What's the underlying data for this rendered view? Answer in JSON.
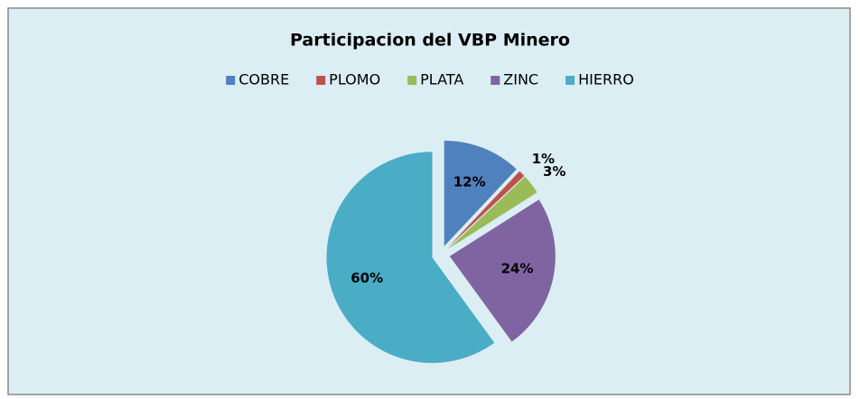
{
  "chart_data": {
    "type": "pie",
    "title": "Participacion del VBP Minero",
    "categories": [
      "COBRE",
      "PLOMO",
      "PLATA",
      "ZINC",
      "HIERRO"
    ],
    "values": [
      12,
      1,
      3,
      24,
      60
    ],
    "value_labels": [
      "12%",
      "1%",
      "3%",
      "24%",
      "60%"
    ],
    "colors": [
      "#4f81bd",
      "#c0504d",
      "#9bbb59",
      "#8064a2",
      "#4bacc6"
    ],
    "legend": "top"
  }
}
